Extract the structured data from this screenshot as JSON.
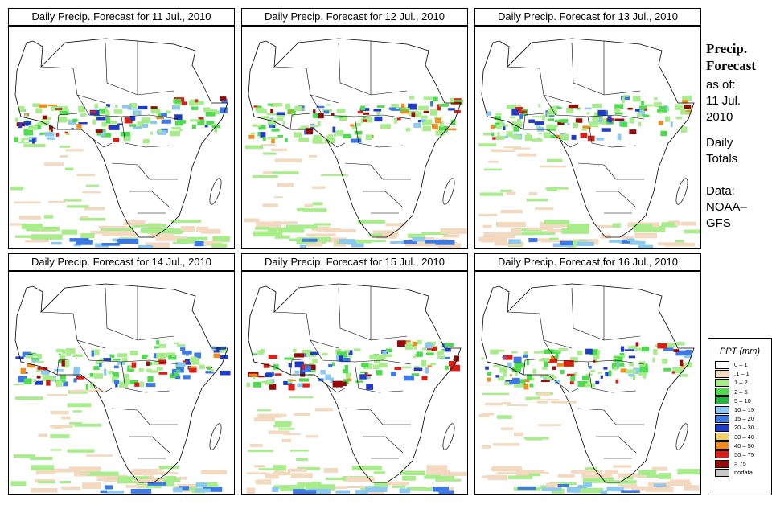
{
  "colors": {
    "trace": "#f2d9bf",
    "light_green": "#a8ec8c",
    "green": "#4edc4e",
    "light_blue": "#8cc8f0",
    "blue": "#3c78e6",
    "dark_blue": "#1e3cc8",
    "yellow": "#f0d264",
    "orange": "#f08c1e",
    "red": "#dc1e14",
    "dark_red": "#960a0a"
  },
  "panels": [
    {
      "title": "Daily Precip. Forecast for  11 Jul., 2010",
      "day": "11 Jul."
    },
    {
      "title": "Daily Precip. Forecast for  12 Jul., 2010",
      "day": "12 Jul."
    },
    {
      "title": "Daily Precip. Forecast for  13 Jul., 2010",
      "day": "13 Jul."
    },
    {
      "title": "Daily Precip. Forecast for  14 Jul., 2010",
      "day": "14 Jul."
    },
    {
      "title": "Daily Precip. Forecast for  15 Jul., 2010",
      "day": "15 Jul."
    },
    {
      "title": "Daily Precip. Forecast for  16 Jul., 2010",
      "day": "16 Jul."
    }
  ],
  "sidebar": {
    "title_line1": "Precip.",
    "title_line2": "Forecast",
    "as_of_label": "as of:",
    "as_of_day": "11 Jul.",
    "as_of_year": "2010",
    "period_line1": "Daily",
    "period_line2": "Totals",
    "source_line1": "Data:",
    "source_line2": "NOAA–",
    "source_line3": "GFS"
  },
  "legend": {
    "title": "PPT (mm)",
    "items": [
      {
        "label": "0 – 1",
        "color": "#ffffff"
      },
      {
        "label": ".1 – 1",
        "color": "#f2d9bf"
      },
      {
        "label": "1 – 2",
        "color": "#a8ec8c"
      },
      {
        "label": "2 – 5",
        "color": "#4edc4e"
      },
      {
        "label": "5 – 10",
        "color": "#28b43c"
      },
      {
        "label": "10 – 15",
        "color": "#8cc8f0"
      },
      {
        "label": "15 – 20",
        "color": "#3c78e6"
      },
      {
        "label": "20 – 30",
        "color": "#1e3cc8"
      },
      {
        "label": "30 – 40",
        "color": "#f0d264"
      },
      {
        "label": "40 – 50",
        "color": "#f08c1e"
      },
      {
        "label": "50 – 75",
        "color": "#dc1e14"
      },
      {
        "label": "> 75",
        "color": "#960a0a"
      },
      {
        "label": "nodata",
        "color": "#c8c8c8"
      }
    ]
  }
}
